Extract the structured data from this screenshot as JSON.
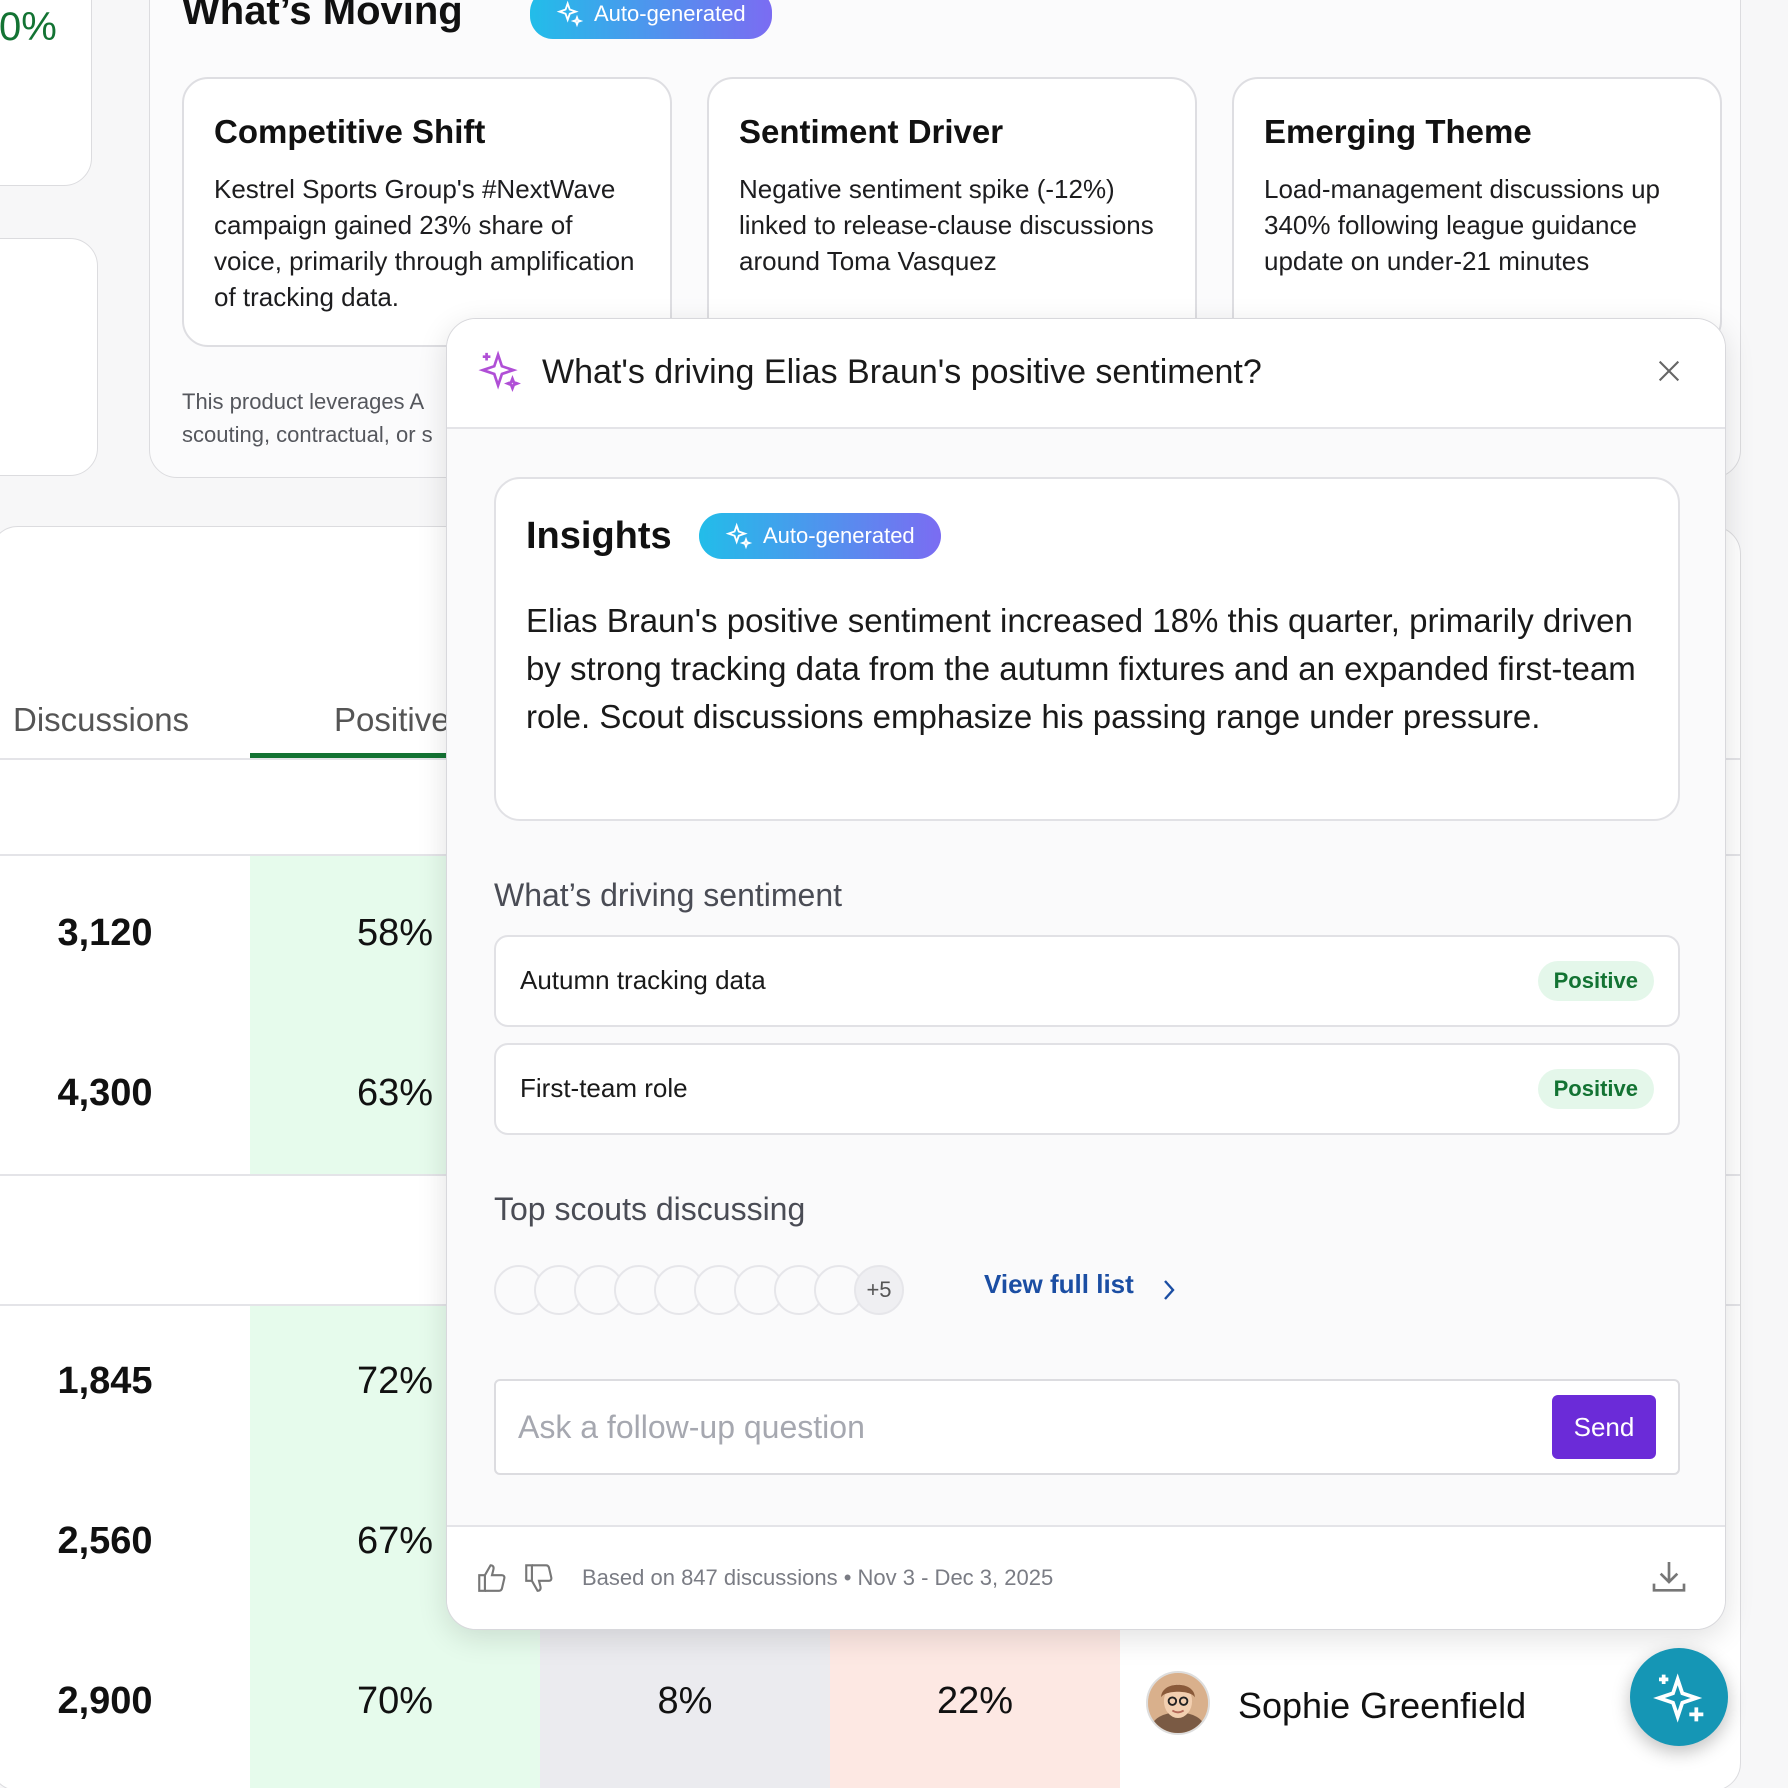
{
  "stat": {
    "value": "0%"
  },
  "moving": {
    "title": "What’s Moving",
    "pill": "Auto-generated",
    "cards": [
      {
        "title": "Competitive Shift",
        "body": "Kestrel Sports Group's #NextWave campaign gained 23% share of voice, primarily through amplification of tracking data."
      },
      {
        "title": "Sentiment Driver",
        "body": "Negative sentiment spike (-12%) linked to release-clause discussions around Toma Vasquez"
      },
      {
        "title": "Emerging Theme",
        "body": "Load-management discussions up 340% following league guidance update on under-21 minutes"
      }
    ],
    "disclaimer_line1": "This product leverages A",
    "disclaimer_line2": "scouting, contractual, or s"
  },
  "table": {
    "headers": {
      "discussions": "Discussions",
      "positive": "Positive"
    },
    "rows": [
      {
        "discussions": "3,120",
        "positive": "58%"
      },
      {
        "discussions": "4,300",
        "positive": "63%"
      },
      {
        "discussions": "1,845",
        "positive": "72%"
      },
      {
        "discussions": "2,560",
        "positive": "67%"
      },
      {
        "discussions": "2,900",
        "positive": "70%",
        "neutral": "8%",
        "negative": "22%",
        "scout": "Sophie Greenfield"
      }
    ]
  },
  "popup": {
    "title": "What's driving Elias Braun's positive sentiment?",
    "insights_title": "Insights",
    "insights_pill": "Auto-generated",
    "insights_text": "Elias Braun's positive sentiment increased 18% this quarter, primarily driven by strong tracking data from the autumn fixtures and an expanded first-team role. Scout discussions emphasize his passing range under pressure.",
    "drivers_label": "What’s driving sentiment",
    "drivers": [
      {
        "label": "Autumn tracking data",
        "badge": "Positive"
      },
      {
        "label": "First-team role",
        "badge": "Positive"
      }
    ],
    "scouts_label": "Top scouts discussing",
    "more_count": "+5",
    "view_full": "View full list",
    "followup_placeholder": "Ask a follow-up question",
    "send": "Send",
    "footer_text": "Based on 847 discussions • Nov 3 - Dec 3, 2025"
  },
  "colors": {
    "accent_green": "#137333",
    "send_purple": "#6b2bd8",
    "link_blue": "#1b4ea3",
    "fab_teal": "#1596b5",
    "pill_gradient_start": "#22bde9",
    "pill_gradient_end": "#7b6cf2"
  },
  "icons": [
    "sparkle-icon",
    "close-icon",
    "chevron-right-icon",
    "thumbs-up-icon",
    "thumbs-down-icon",
    "download-icon",
    "ai-assistant-icon"
  ]
}
